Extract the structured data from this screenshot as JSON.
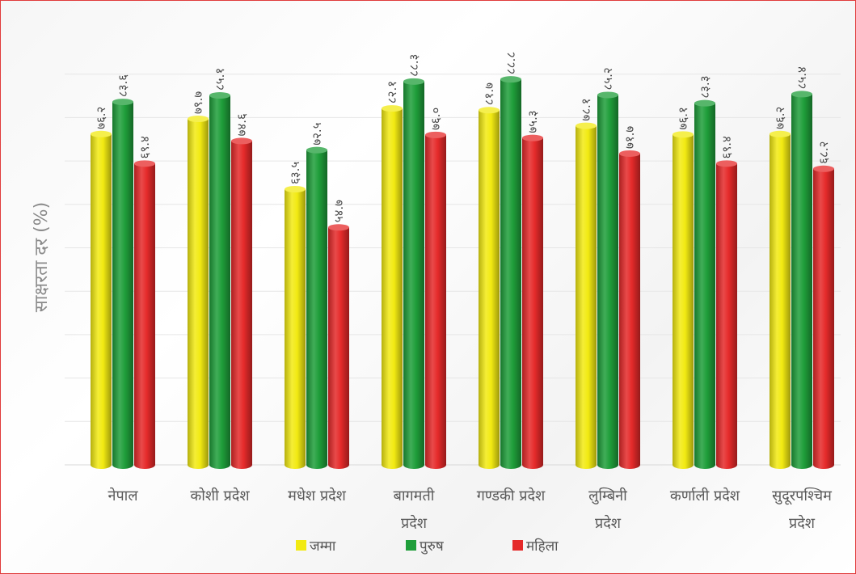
{
  "chart_data": {
    "type": "bar",
    "title": "",
    "ylabel": "साक्षरता दर (%)",
    "xlabel": "",
    "categories": [
      "नेपाल",
      "कोशी प्रदेश",
      "मधेश प्रदेश",
      "बागमती प्रदेश",
      "गण्डकी प्रदेश",
      "लुम्बिनी प्रदेश",
      "कर्णाली प्रदेश",
      "सुदूरपश्चिम प्रदेश"
    ],
    "category_lines": [
      [
        "नेपाल"
      ],
      [
        "कोशी प्रदेश"
      ],
      [
        "मधेश प्रदेश"
      ],
      [
        "बागमती",
        "प्रदेश"
      ],
      [
        "गण्डकी प्रदेश"
      ],
      [
        "लुम्बिनी",
        "प्रदेश"
      ],
      [
        "कर्णाली प्रदेश"
      ],
      [
        "सुदूरपश्चिम",
        "प्रदेश"
      ]
    ],
    "series": [
      {
        "name": "जम्मा",
        "color": "#f2ea12",
        "values": [
          76.2,
          79.7,
          63.5,
          82.1,
          81.7,
          78.1,
          76.1,
          76.2
        ],
        "labels": [
          "७६.२",
          "७९.७",
          "६३.५",
          "८२.१",
          "८१.७",
          "७८.१",
          "७६.१",
          "७६.२"
        ]
      },
      {
        "name": "पुरुष",
        "color": "#1f9e3a",
        "values": [
          83.6,
          85.1,
          72.5,
          88.3,
          88.8,
          85.2,
          83.3,
          85.4
        ],
        "labels": [
          "८३.६",
          "८५.१",
          "७२.५",
          "८८.३",
          "८८.८",
          "८५.२",
          "८३.३",
          "८५.४"
        ]
      },
      {
        "name": "महिला",
        "color": "#e52a2a",
        "values": [
          69.4,
          74.6,
          54.7,
          76.0,
          75.3,
          71.7,
          69.4,
          68.2
        ],
        "labels": [
          "६९.४",
          "७४.६",
          "५४.७",
          "७६.०",
          "७५.३",
          "७१.७",
          "६९.४",
          "६८.२"
        ]
      }
    ],
    "ylim": [
      0,
      100
    ],
    "grid": true,
    "legend_position": "bottom"
  }
}
